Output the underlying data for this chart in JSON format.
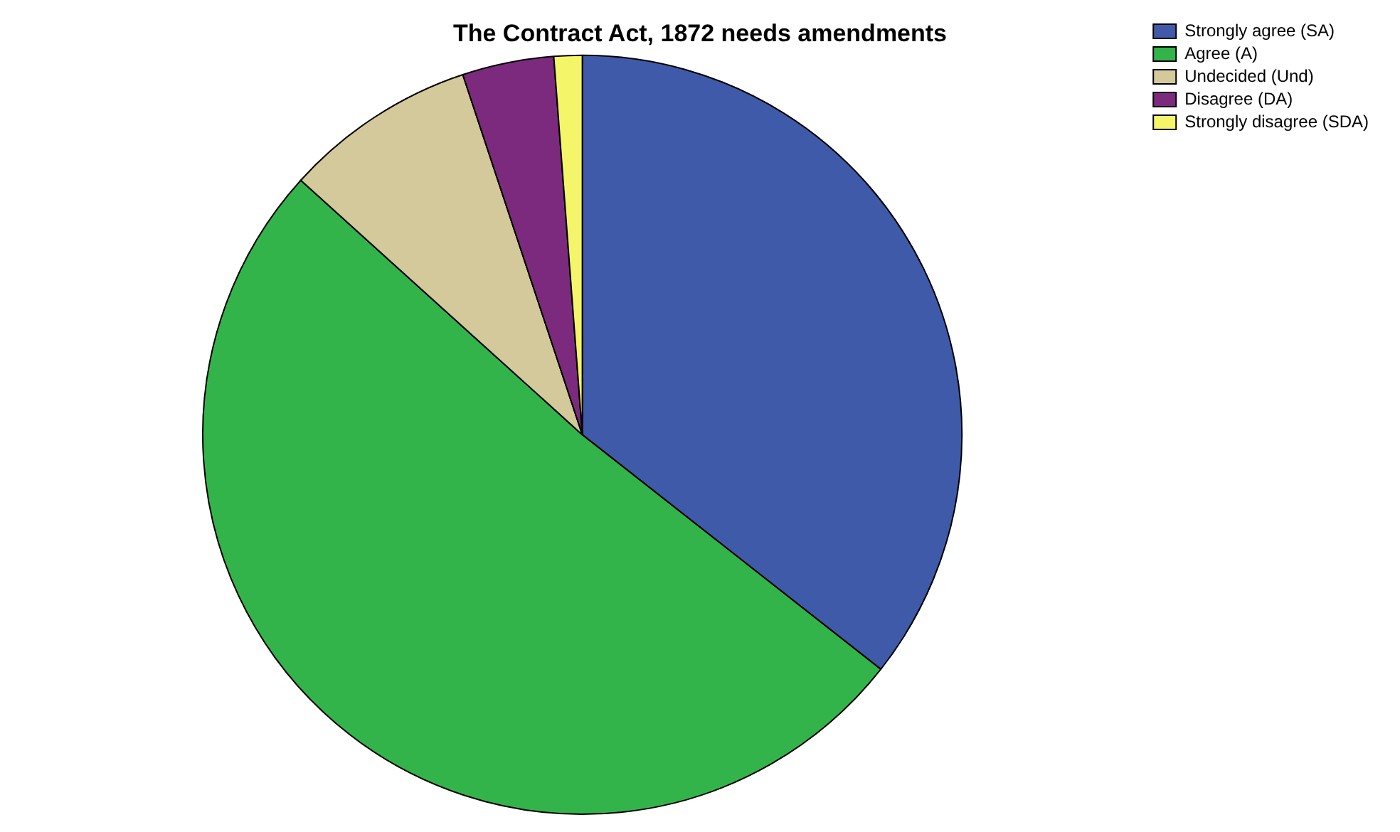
{
  "chart_data": {
    "type": "pie",
    "title": "The Contract Act, 1872 needs amendments",
    "categories": [
      "Strongly agree (SA)",
      "Agree (A)",
      "Undecided (Und)",
      "Disagree (DA)",
      "Strongly disagree (SDA)"
    ],
    "values": [
      35.6,
      51.1,
      8.2,
      3.9,
      1.2
    ],
    "colors": [
      "#3f5aa8",
      "#33b44a",
      "#d3c99a",
      "#7b2a7d",
      "#f5f56a"
    ],
    "legend": "top right"
  }
}
